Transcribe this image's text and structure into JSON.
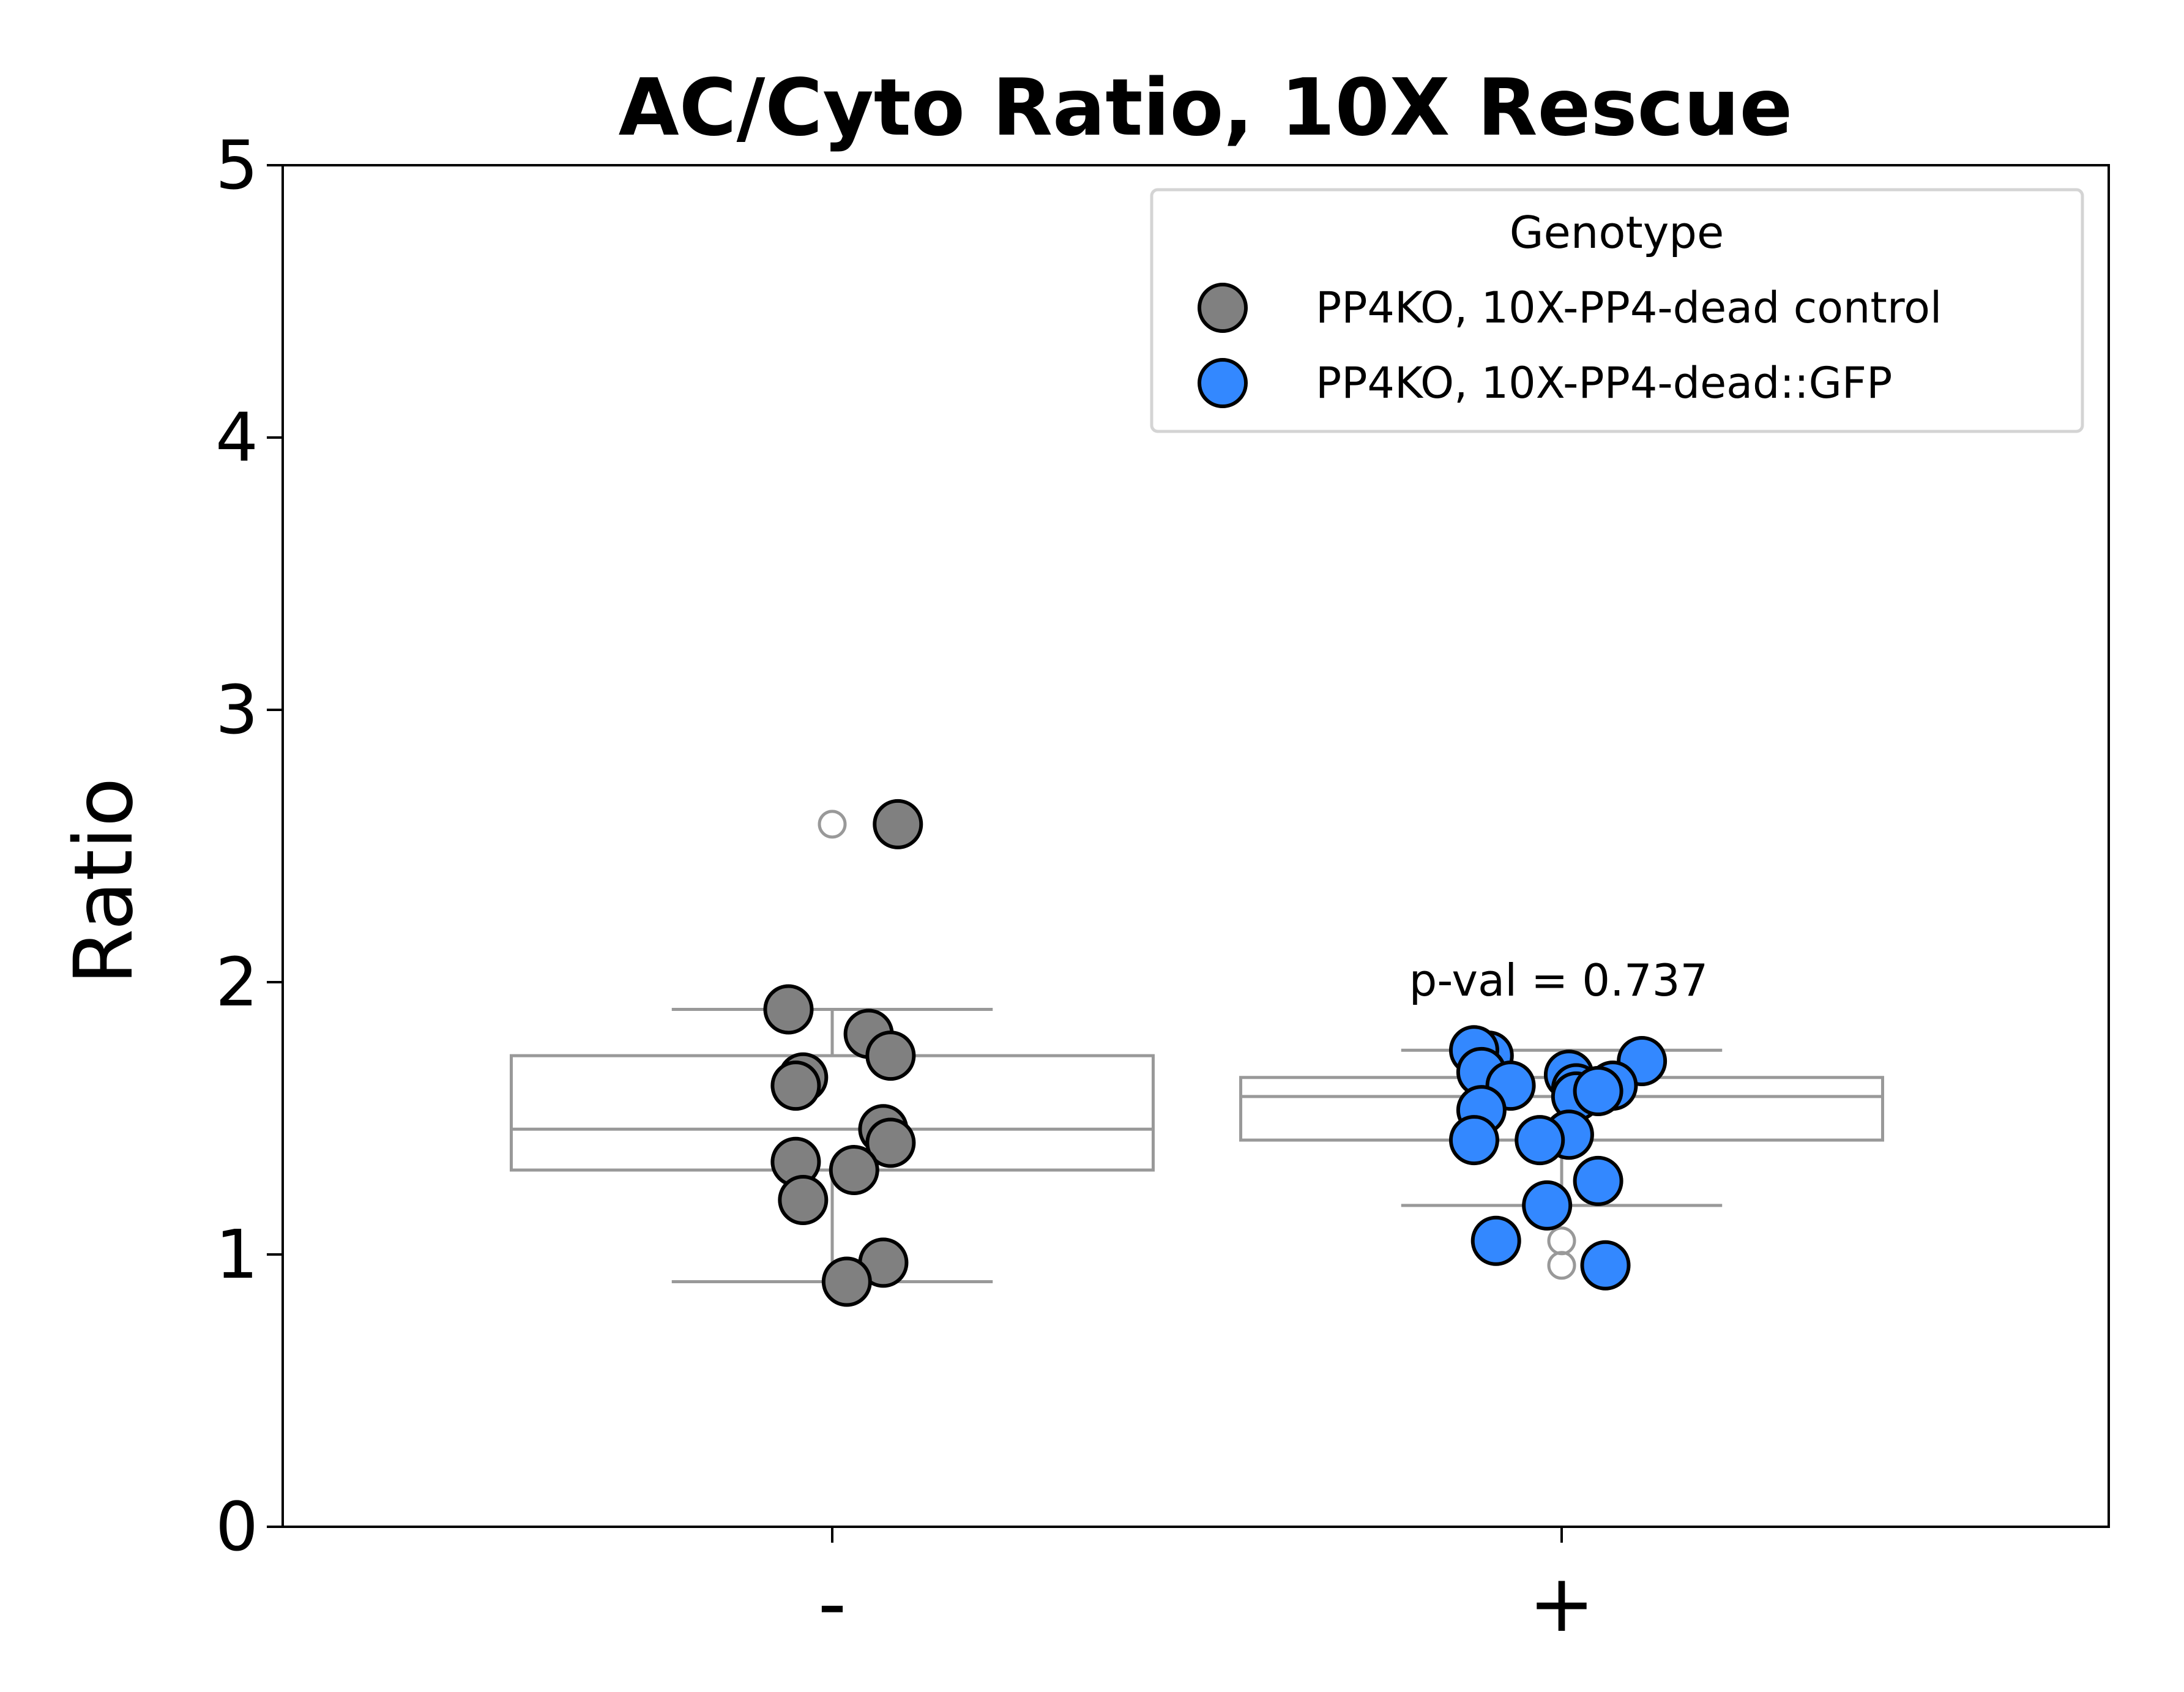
{
  "chart_data": {
    "type": "box",
    "title": "AC/Cyto Ratio, 10X Rescue",
    "xlabel": "",
    "ylabel": "Ratio",
    "ylim": [
      0,
      5
    ],
    "yticks": [
      "0",
      "1",
      "2",
      "3",
      "4",
      "5"
    ],
    "categories": [
      "-",
      "+"
    ],
    "grid": false,
    "legend": {
      "title": "Genotype",
      "position": "top-right",
      "entries": [
        {
          "label": "PP4KO, 10X-PP4-dead control",
          "color": "#808080"
        },
        {
          "label": "PP4KO, 10X-PP4-dead::GFP",
          "color": "#3388ff"
        }
      ]
    },
    "annotation": "p-val = 0.737",
    "boxes": [
      {
        "category": "-",
        "whisker_low": 0.9,
        "q1": 1.31,
        "median": 1.46,
        "q3": 1.73,
        "whisker_high": 1.9,
        "outliers": [
          2.58
        ]
      },
      {
        "category": "+",
        "whisker_low": 1.18,
        "q1": 1.42,
        "median": 1.58,
        "q3": 1.65,
        "whisker_high": 1.75,
        "outliers": [
          1.05,
          0.96
        ]
      }
    ],
    "series": [
      {
        "name": "PP4KO, 10X-PP4-dead control",
        "category": "-",
        "color": "#808080",
        "points": [
          {
            "offset": 0.09,
            "y": 2.58
          },
          {
            "offset": -0.06,
            "y": 1.9
          },
          {
            "offset": 0.05,
            "y": 1.81
          },
          {
            "offset": 0.08,
            "y": 1.73
          },
          {
            "offset": -0.04,
            "y": 1.65
          },
          {
            "offset": -0.05,
            "y": 1.62
          },
          {
            "offset": 0.07,
            "y": 1.46
          },
          {
            "offset": 0.08,
            "y": 1.41
          },
          {
            "offset": -0.05,
            "y": 1.34
          },
          {
            "offset": 0.03,
            "y": 1.31
          },
          {
            "offset": -0.04,
            "y": 1.2
          },
          {
            "offset": 0.07,
            "y": 0.97
          },
          {
            "offset": 0.02,
            "y": 0.9
          }
        ]
      },
      {
        "name": "PP4KO, 10X-PP4-dead::GFP",
        "category": "+",
        "color": "#3388ff",
        "points": [
          {
            "offset": -0.1,
            "y": 1.73
          },
          {
            "offset": -0.12,
            "y": 1.75
          },
          {
            "offset": 0.11,
            "y": 1.71
          },
          {
            "offset": -0.11,
            "y": 1.67
          },
          {
            "offset": 0.01,
            "y": 1.66
          },
          {
            "offset": 0.02,
            "y": 1.61
          },
          {
            "offset": -0.07,
            "y": 1.62
          },
          {
            "offset": 0.07,
            "y": 1.62
          },
          {
            "offset": 0.02,
            "y": 1.58
          },
          {
            "offset": -0.11,
            "y": 1.53
          },
          {
            "offset": 0.01,
            "y": 1.44
          },
          {
            "offset": -0.03,
            "y": 1.42
          },
          {
            "offset": -0.12,
            "y": 1.42
          },
          {
            "offset": 0.05,
            "y": 1.27
          },
          {
            "offset": -0.02,
            "y": 1.18
          },
          {
            "offset": -0.09,
            "y": 1.05
          },
          {
            "offset": 0.06,
            "y": 0.96
          },
          {
            "offset": 0.05,
            "y": 1.6
          }
        ]
      }
    ]
  }
}
